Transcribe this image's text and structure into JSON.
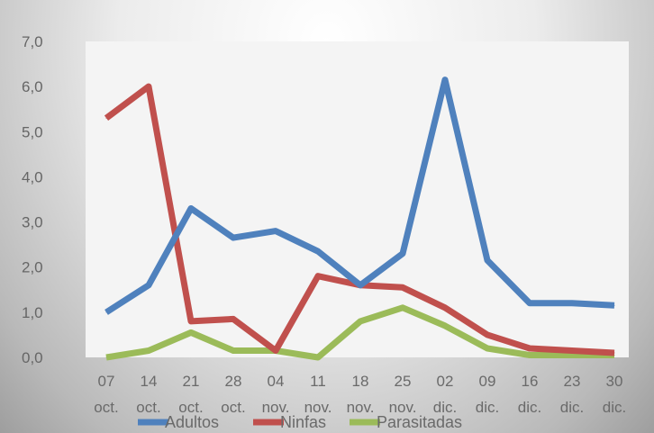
{
  "chart_data": {
    "type": "line",
    "title": "",
    "xlabel": "",
    "ylabel": "",
    "ylim": [
      0,
      7
    ],
    "yticks": [
      "0,0",
      "1,0",
      "2,0",
      "3,0",
      "4,0",
      "5,0",
      "6,0",
      "7,0"
    ],
    "grid": false,
    "legend_position": "bottom",
    "categories": [
      [
        "07",
        "oct."
      ],
      [
        "14",
        "oct."
      ],
      [
        "21",
        "oct."
      ],
      [
        "28",
        "oct."
      ],
      [
        "04",
        "nov."
      ],
      [
        "11",
        "nov."
      ],
      [
        "18",
        "nov."
      ],
      [
        "25",
        "nov."
      ],
      [
        "02",
        "dic."
      ],
      [
        "09",
        "dic."
      ],
      [
        "16",
        "dic."
      ],
      [
        "23",
        "dic."
      ],
      [
        "30",
        "dic."
      ]
    ],
    "series": [
      {
        "name": "Adultos",
        "color": "#4f81bd",
        "values": [
          1.0,
          1.6,
          3.3,
          2.65,
          2.8,
          2.35,
          1.6,
          2.3,
          6.15,
          2.15,
          1.2,
          1.2,
          1.15
        ]
      },
      {
        "name": "Ninfas",
        "color": "#c0504d",
        "values": [
          5.3,
          6.0,
          0.8,
          0.85,
          0.15,
          1.8,
          1.6,
          1.55,
          1.1,
          0.5,
          0.2,
          0.15,
          0.1
        ]
      },
      {
        "name": "Parasitadas",
        "color": "#9bbb59",
        "values": [
          0.0,
          0.15,
          0.55,
          0.15,
          0.15,
          0.0,
          0.8,
          1.1,
          0.7,
          0.2,
          0.05,
          0.05,
          0.05
        ]
      }
    ]
  }
}
